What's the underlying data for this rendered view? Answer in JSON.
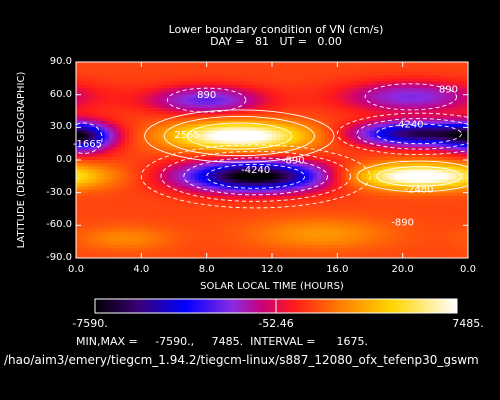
{
  "chart_data": {
    "type": "heatmap",
    "title": "Lower boundary condition of VN (cm/s)",
    "subtitle": "DAY =   81   UT =   0.00",
    "xlabel": "SOLAR LOCAL TIME (HOURS)",
    "ylabel": "LATITUDE (DEGREES GEOGRAPHIC)",
    "xlim": [
      0,
      24
    ],
    "ylim": [
      -90,
      90
    ],
    "x_ticks": [
      "0.0",
      "4.0",
      "8.0",
      "12.0",
      "16.0",
      "20.0",
      "0.0"
    ],
    "y_ticks": [
      "90.0",
      "60.0",
      "30.0",
      "0.0",
      "-30.0",
      "-60.0",
      "-90.0"
    ],
    "min": -7590,
    "max": 7485,
    "interval": 1675,
    "colorbar": {
      "min_label": "-7590.",
      "mid_label": "-52.46",
      "max_label": "7485."
    },
    "stats_text": "MIN,MAX =     -7590.,     7485.  INTERVAL =      1675.",
    "file_path": "/hao/aim3/emery/tiegcm_1.94.2/tiegcm-linux/s887_12080_ofx_tefenp30_gswm",
    "contour_labels": [
      {
        "text": "890",
        "x": 8.0,
        "y": 57
      },
      {
        "text": "890",
        "x": 22.8,
        "y": 62
      },
      {
        "text": "4240",
        "x": 20.5,
        "y": 30
      },
      {
        "text": "2565",
        "x": 6.8,
        "y": 20
      },
      {
        "text": "-1665",
        "x": 0.7,
        "y": 12
      },
      {
        "text": "-890",
        "x": 13.3,
        "y": -3
      },
      {
        "text": "-4240",
        "x": 11.0,
        "y": -12
      },
      {
        "text": "-2480",
        "x": 21.0,
        "y": -30
      },
      {
        "text": "-890",
        "x": 20.0,
        "y": -60
      }
    ]
  }
}
